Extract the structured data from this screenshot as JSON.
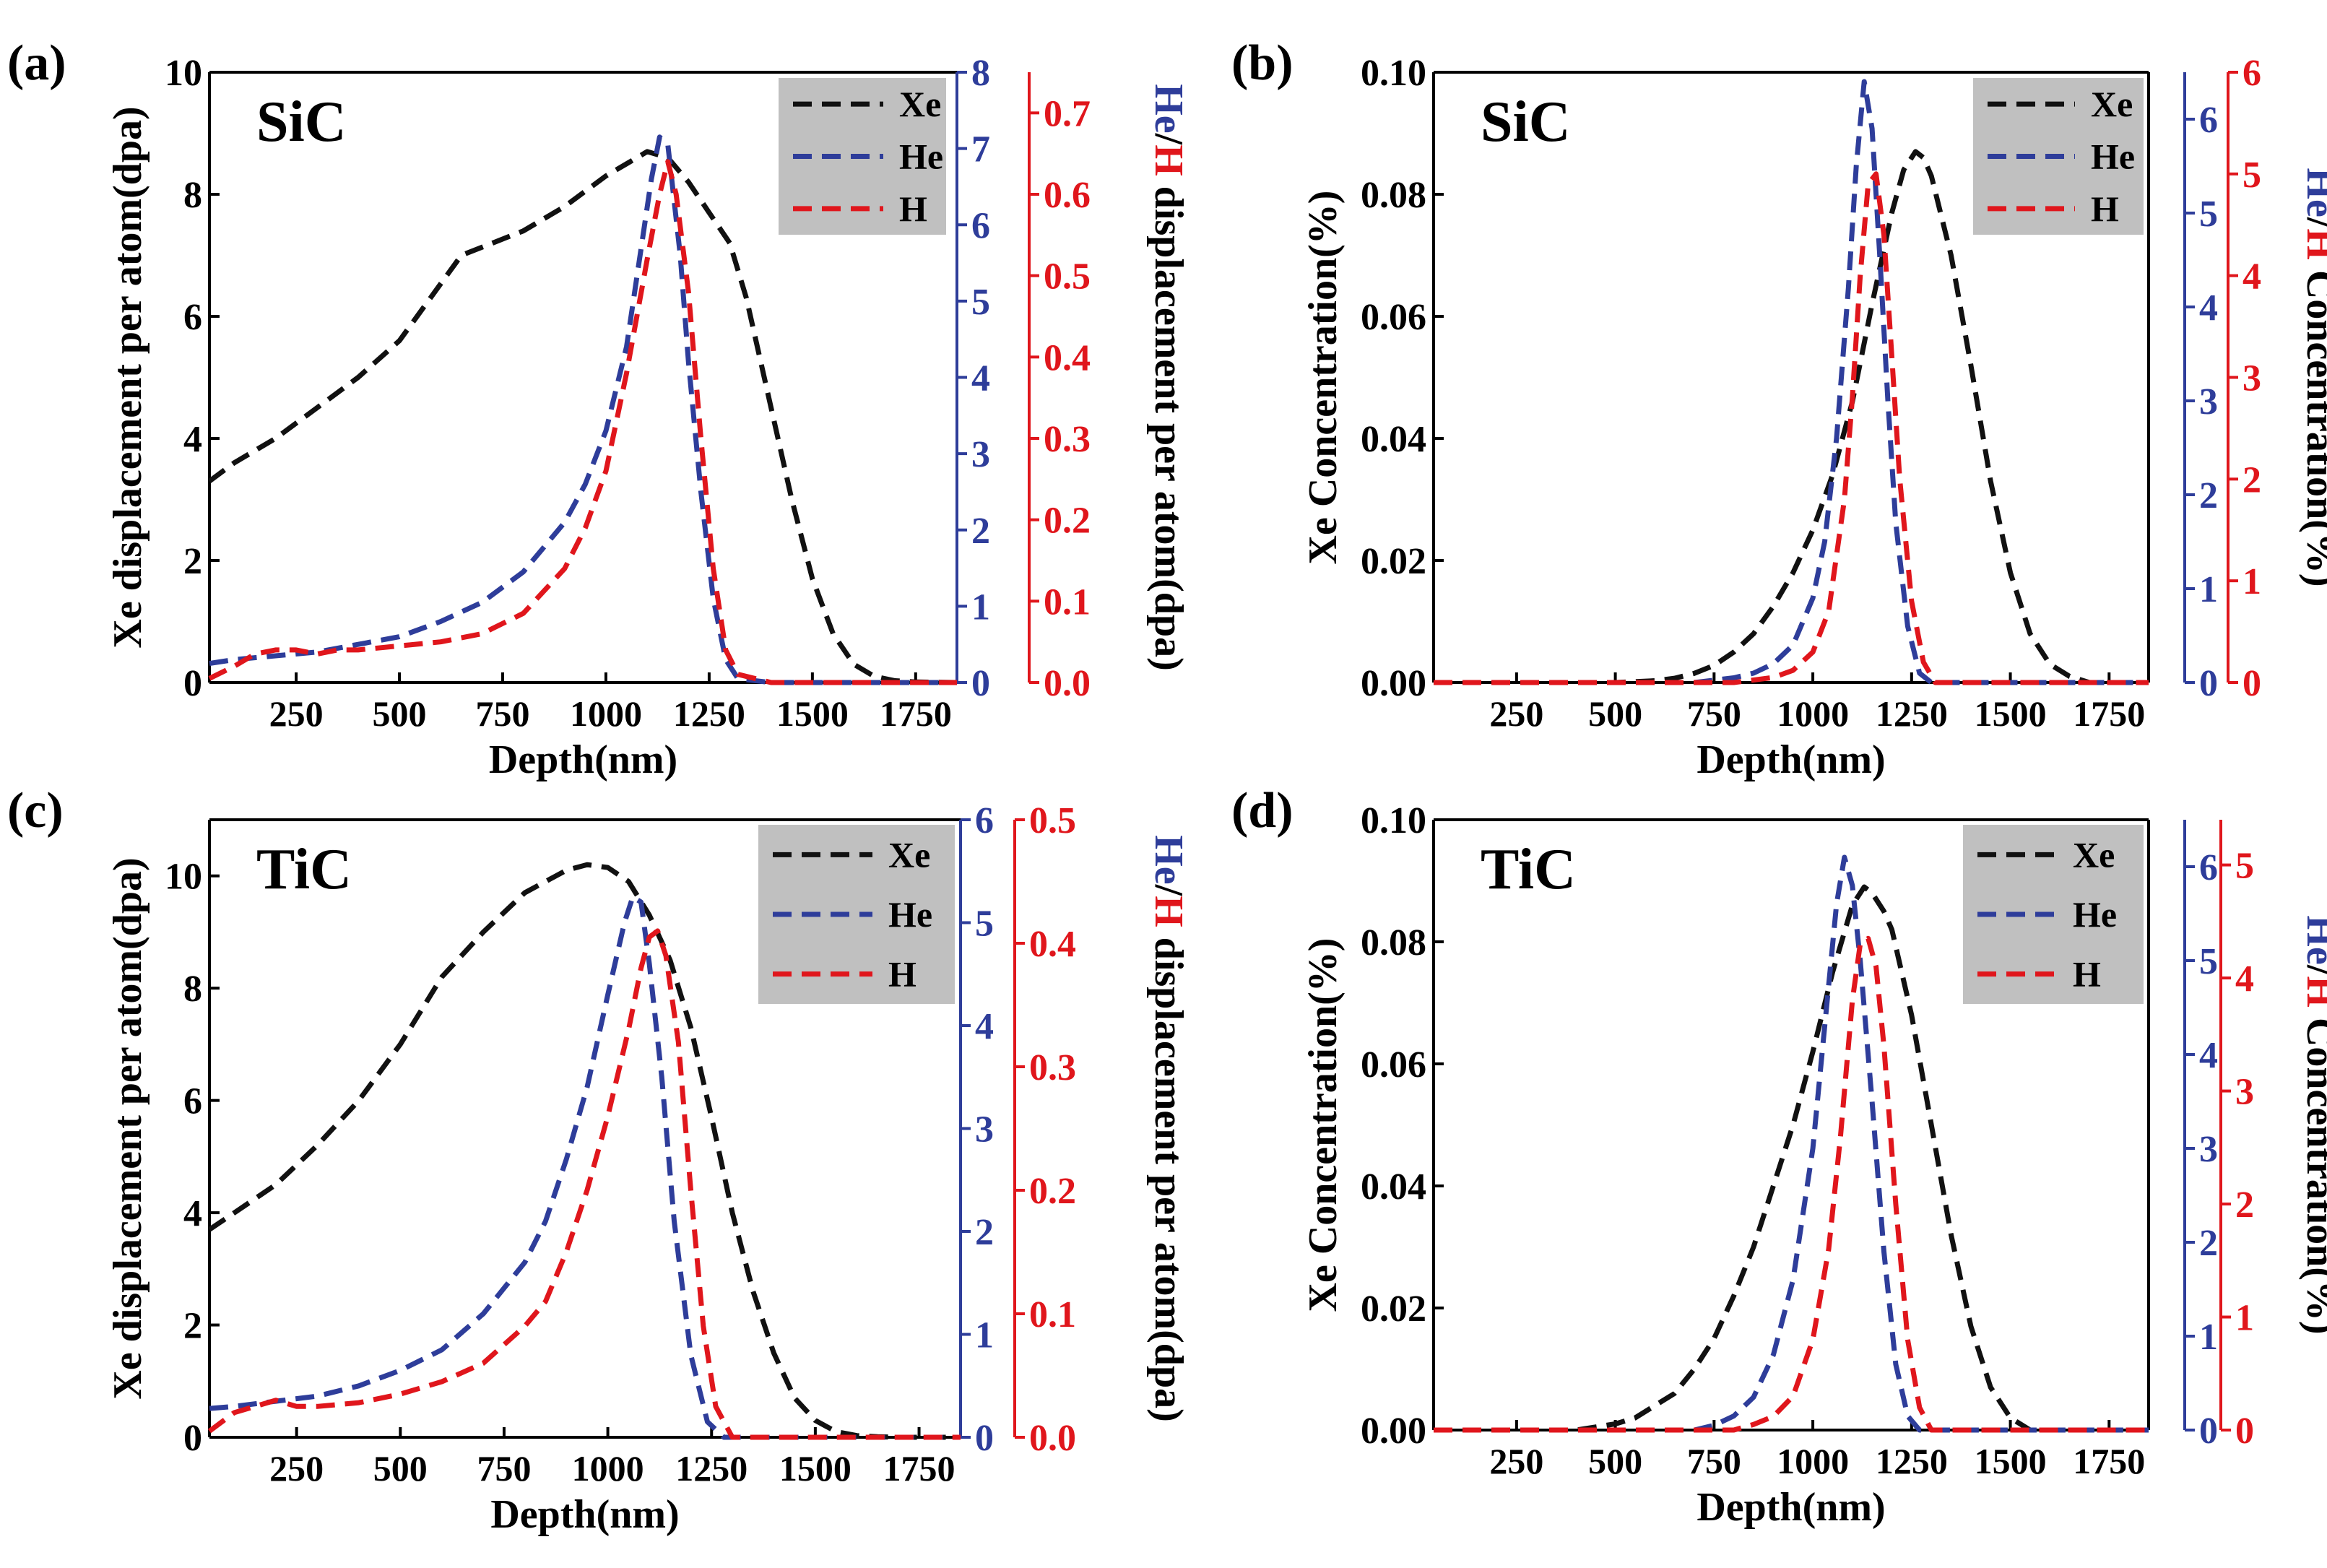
{
  "colors": {
    "xe": "#111111",
    "he": "#2e3d9a",
    "h": "#e0161c",
    "legend_bg": "#c0c0c0"
  },
  "chart_data": [
    {
      "id": "a",
      "panel_label": "(a)",
      "material": "SiC",
      "type": "line",
      "xlabel": "Depth(nm)",
      "xlim": [
        40,
        1850
      ],
      "xticks": [
        "250",
        "500",
        "750",
        "1000",
        "1250",
        "1500",
        "1750"
      ],
      "ylabel": "Xe displacement per atom(dpa)",
      "ylim": [
        0,
        10
      ],
      "yticks": [
        "0",
        "2",
        "4",
        "6",
        "8",
        "10"
      ],
      "y2": {
        "label_he": "He",
        "label_sep": "/",
        "label_h": "H",
        "label_rest": " displacement per atom(dpa)",
        "ylim": [
          0,
          8
        ],
        "ticks": [
          "0",
          "1",
          "2",
          "3",
          "4",
          "5",
          "6",
          "7",
          "8"
        ]
      },
      "y3": {
        "ylim": [
          0,
          0.75
        ],
        "ticks": [
          "0.0",
          "0.1",
          "0.2",
          "0.3",
          "0.4",
          "0.5",
          "0.6",
          "0.7"
        ]
      },
      "legend": [
        "Xe",
        "He",
        "H"
      ],
      "series": [
        {
          "name": "Xe",
          "axis": "left",
          "x": [
            40,
            100,
            200,
            300,
            400,
            500,
            650,
            800,
            900,
            1000,
            1050,
            1100,
            1150,
            1200,
            1250,
            1300,
            1340,
            1400,
            1450,
            1500,
            1550,
            1600,
            1650,
            1700,
            1750,
            1850
          ],
          "y": [
            3.3,
            3.6,
            4.0,
            4.5,
            5.0,
            5.6,
            7.0,
            7.4,
            7.8,
            8.3,
            8.5,
            8.7,
            8.6,
            8.2,
            7.7,
            7.2,
            6.3,
            4.5,
            3.0,
            1.7,
            0.8,
            0.3,
            0.1,
            0.03,
            0.01,
            0.0
          ]
        },
        {
          "name": "He",
          "axis": "right1",
          "x": [
            40,
            100,
            200,
            300,
            400,
            500,
            600,
            700,
            800,
            900,
            950,
            1000,
            1050,
            1080,
            1110,
            1130,
            1150,
            1180,
            1200,
            1230,
            1260,
            1290,
            1320,
            1400,
            1850
          ],
          "y": [
            0.25,
            0.3,
            0.35,
            0.4,
            0.5,
            0.6,
            0.8,
            1.05,
            1.45,
            2.1,
            2.6,
            3.3,
            4.4,
            5.5,
            6.6,
            7.15,
            7.05,
            5.6,
            4.2,
            2.5,
            1.1,
            0.3,
            0.05,
            0.0,
            0.0
          ]
        },
        {
          "name": "H",
          "axis": "right2",
          "x": [
            40,
            100,
            150,
            200,
            250,
            300,
            350,
            400,
            500,
            600,
            700,
            800,
            900,
            950,
            1000,
            1050,
            1100,
            1130,
            1150,
            1170,
            1200,
            1230,
            1260,
            1290,
            1320,
            1400,
            1850
          ],
          "y": [
            0.005,
            0.02,
            0.035,
            0.04,
            0.04,
            0.035,
            0.04,
            0.04,
            0.045,
            0.05,
            0.06,
            0.085,
            0.14,
            0.19,
            0.26,
            0.38,
            0.52,
            0.6,
            0.64,
            0.6,
            0.48,
            0.3,
            0.14,
            0.04,
            0.01,
            0.0,
            0.0
          ]
        }
      ]
    },
    {
      "id": "b",
      "panel_label": "(b)",
      "material": "SiC",
      "type": "line",
      "xlabel": "Depth(nm)",
      "xlim": [
        40,
        1850
      ],
      "xticks": [
        "250",
        "500",
        "750",
        "1000",
        "1250",
        "1500",
        "1750"
      ],
      "ylabel": "Xe Concentration(%)",
      "ylim": [
        0,
        0.1
      ],
      "yticks": [
        "0.00",
        "0.02",
        "0.04",
        "0.06",
        "0.08",
        "0.10"
      ],
      "y2": {
        "label_he": "He",
        "label_sep": "/",
        "label_h": "H",
        "label_rest": " Concentration(%)",
        "ylim": [
          0,
          6.5
        ],
        "ticks": [
          "0",
          "1",
          "2",
          "3",
          "4",
          "5",
          "6"
        ]
      },
      "y3": {
        "ylim": [
          0,
          6
        ],
        "ticks": [
          "0",
          "1",
          "2",
          "3",
          "4",
          "5",
          "6"
        ]
      },
      "legend": [
        "Xe",
        "He",
        "H"
      ],
      "series": [
        {
          "name": "Xe",
          "axis": "left",
          "x": [
            40,
            500,
            600,
            650,
            700,
            750,
            800,
            850,
            900,
            950,
            1000,
            1050,
            1100,
            1150,
            1200,
            1230,
            1260,
            1280,
            1300,
            1350,
            1400,
            1450,
            1500,
            1550,
            1600,
            1650,
            1700,
            1850
          ],
          "y": [
            0,
            0.0,
            0.0003,
            0.0007,
            0.0015,
            0.0028,
            0.005,
            0.008,
            0.0125,
            0.018,
            0.025,
            0.034,
            0.046,
            0.062,
            0.077,
            0.084,
            0.087,
            0.086,
            0.083,
            0.07,
            0.052,
            0.033,
            0.018,
            0.008,
            0.003,
            0.001,
            0.0,
            0.0
          ]
        },
        {
          "name": "He",
          "axis": "right1",
          "x": [
            40,
            700,
            800,
            850,
            900,
            950,
            1000,
            1030,
            1060,
            1090,
            1110,
            1130,
            1150,
            1170,
            1190,
            1210,
            1240,
            1270,
            1300,
            1850
          ],
          "y": [
            0,
            0.0,
            0.05,
            0.1,
            0.2,
            0.4,
            0.9,
            1.5,
            2.6,
            4.2,
            5.5,
            6.4,
            5.9,
            4.5,
            3.0,
            1.7,
            0.6,
            0.1,
            0.0,
            0.0
          ]
        },
        {
          "name": "H",
          "axis": "right2",
          "x": [
            40,
            800,
            900,
            950,
            1000,
            1040,
            1080,
            1100,
            1120,
            1140,
            1160,
            1180,
            1200,
            1220,
            1250,
            1280,
            1310,
            1850
          ],
          "y": [
            0,
            0.0,
            0.05,
            0.12,
            0.3,
            0.7,
            1.8,
            2.8,
            4.0,
            4.9,
            5.0,
            4.4,
            3.2,
            2.0,
            0.8,
            0.2,
            0.0,
            0.0
          ]
        }
      ]
    },
    {
      "id": "c",
      "panel_label": "(c)",
      "material": "TiC",
      "type": "line",
      "xlabel": "Depth(nm)",
      "xlim": [
        40,
        1850
      ],
      "xticks": [
        "250",
        "500",
        "750",
        "1000",
        "1250",
        "1500",
        "1750"
      ],
      "ylabel": "Xe displacement per atom(dpa)",
      "ylim": [
        0,
        11
      ],
      "yticks": [
        "0",
        "2",
        "4",
        "6",
        "8",
        "10"
      ],
      "y2": {
        "label_he": "He",
        "label_sep": "/",
        "label_h": "H",
        "label_rest": " displacement per atom(dpa)",
        "ylim": [
          0,
          6
        ],
        "ticks": [
          "0",
          "1",
          "2",
          "3",
          "4",
          "5",
          "6"
        ]
      },
      "y3": {
        "ylim": [
          0,
          0.5
        ],
        "ticks": [
          "0.0",
          "0.1",
          "0.2",
          "0.3",
          "0.4",
          "0.5"
        ]
      },
      "legend": [
        "Xe",
        "He",
        "H"
      ],
      "series": [
        {
          "name": "Xe",
          "axis": "left",
          "x": [
            40,
            100,
            200,
            300,
            400,
            500,
            600,
            700,
            800,
            900,
            950,
            1000,
            1050,
            1100,
            1150,
            1200,
            1250,
            1300,
            1350,
            1400,
            1450,
            1500,
            1550,
            1600,
            1650,
            1700,
            1850
          ],
          "y": [
            3.7,
            4.0,
            4.5,
            5.2,
            6.0,
            7.0,
            8.2,
            9.0,
            9.7,
            10.1,
            10.2,
            10.15,
            9.9,
            9.3,
            8.5,
            7.3,
            5.7,
            4.0,
            2.6,
            1.5,
            0.7,
            0.3,
            0.1,
            0.03,
            0.01,
            0.0,
            0.0
          ]
        },
        {
          "name": "He",
          "axis": "right1",
          "x": [
            40,
            100,
            200,
            300,
            400,
            500,
            600,
            700,
            800,
            850,
            900,
            950,
            1000,
            1040,
            1060,
            1080,
            1100,
            1130,
            1160,
            1200,
            1240,
            1280,
            1850
          ],
          "y": [
            0.28,
            0.3,
            0.35,
            0.4,
            0.5,
            0.65,
            0.85,
            1.2,
            1.7,
            2.1,
            2.7,
            3.4,
            4.3,
            5.0,
            5.25,
            5.2,
            4.6,
            3.5,
            2.1,
            0.8,
            0.15,
            0.0,
            0.0
          ]
        },
        {
          "name": "H",
          "axis": "right2",
          "x": [
            40,
            100,
            150,
            200,
            250,
            300,
            400,
            500,
            600,
            700,
            800,
            850,
            900,
            950,
            1000,
            1050,
            1080,
            1100,
            1120,
            1140,
            1170,
            1200,
            1230,
            1260,
            1300,
            1850
          ],
          "y": [
            0.005,
            0.02,
            0.025,
            0.03,
            0.025,
            0.025,
            0.028,
            0.035,
            0.045,
            0.06,
            0.09,
            0.11,
            0.15,
            0.2,
            0.26,
            0.33,
            0.38,
            0.405,
            0.41,
            0.39,
            0.32,
            0.2,
            0.09,
            0.025,
            0.0,
            0.0
          ]
        }
      ]
    },
    {
      "id": "d",
      "panel_label": "(d)",
      "material": "TiC",
      "type": "line",
      "xlabel": "Depth(nm)",
      "xlim": [
        40,
        1850
      ],
      "xticks": [
        "250",
        "500",
        "750",
        "1000",
        "1250",
        "1500",
        "1750"
      ],
      "ylabel": "Xe Concentration(%)",
      "ylim": [
        0,
        0.1
      ],
      "yticks": [
        "0.00",
        "0.02",
        "0.04",
        "0.06",
        "0.08",
        "0.10"
      ],
      "y2": {
        "label_he": "He",
        "label_sep": "/",
        "label_h": "H",
        "label_rest": " Concentration(%)",
        "ylim": [
          0,
          6.5
        ],
        "ticks": [
          "0",
          "1",
          "2",
          "3",
          "4",
          "5",
          "6"
        ]
      },
      "y3": {
        "ylim": [
          0,
          5.4
        ],
        "ticks": [
          "0",
          "1",
          "2",
          "3",
          "4",
          "5"
        ]
      },
      "legend": [
        "Xe",
        "He",
        "H"
      ],
      "series": [
        {
          "name": "Xe",
          "axis": "left",
          "x": [
            40,
            400,
            500,
            550,
            600,
            650,
            700,
            750,
            800,
            850,
            900,
            950,
            1000,
            1050,
            1100,
            1130,
            1150,
            1180,
            1200,
            1250,
            1300,
            1350,
            1400,
            1450,
            1500,
            1550,
            1850
          ],
          "y": [
            0,
            0.0,
            0.001,
            0.002,
            0.004,
            0.006,
            0.01,
            0.015,
            0.022,
            0.03,
            0.04,
            0.05,
            0.062,
            0.075,
            0.086,
            0.089,
            0.088,
            0.085,
            0.082,
            0.068,
            0.05,
            0.032,
            0.017,
            0.007,
            0.002,
            0.0,
            0.0
          ]
        },
        {
          "name": "He",
          "axis": "right1",
          "x": [
            40,
            700,
            750,
            800,
            850,
            900,
            950,
            1000,
            1030,
            1060,
            1080,
            1100,
            1120,
            1150,
            1180,
            1210,
            1240,
            1270,
            1850
          ],
          "y": [
            0,
            0.0,
            0.05,
            0.15,
            0.35,
            0.8,
            1.6,
            3.0,
            4.3,
            5.6,
            6.1,
            5.8,
            5.0,
            3.5,
            1.9,
            0.7,
            0.15,
            0.0,
            0.0
          ]
        },
        {
          "name": "H",
          "axis": "right2",
          "x": [
            40,
            800,
            850,
            900,
            950,
            1000,
            1040,
            1070,
            1100,
            1120,
            1140,
            1160,
            1180,
            1210,
            1240,
            1270,
            1300,
            1850
          ],
          "y": [
            0,
            0.0,
            0.05,
            0.12,
            0.3,
            0.8,
            1.6,
            2.6,
            3.8,
            4.3,
            4.35,
            4.1,
            3.4,
            2.0,
            0.8,
            0.2,
            0.0,
            0.0
          ]
        }
      ]
    }
  ]
}
